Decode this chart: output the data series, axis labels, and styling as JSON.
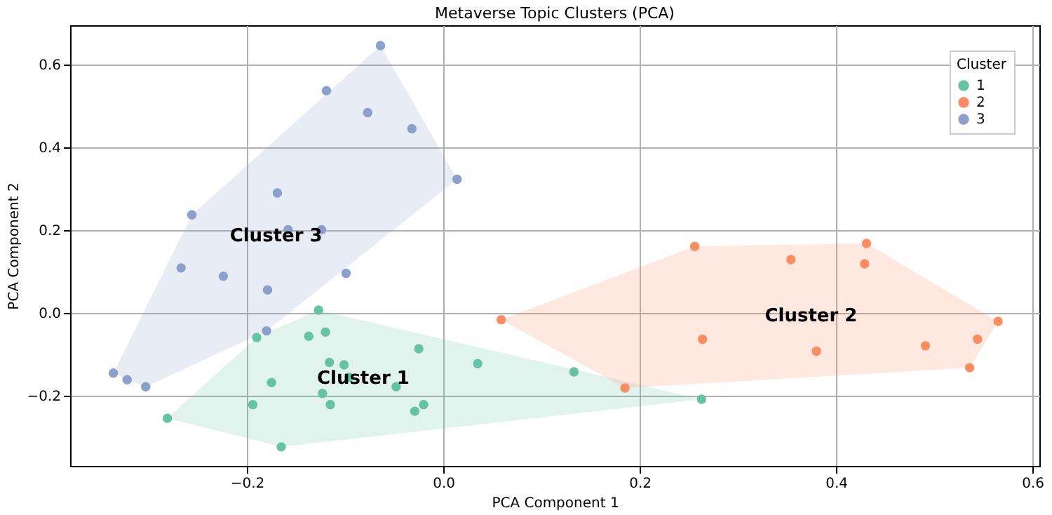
{
  "chart_data": {
    "type": "scatter",
    "title": "Metaverse Topic Clusters (PCA)",
    "xlabel": "PCA Component 1",
    "ylabel": "PCA Component 2",
    "legend_title": "Cluster",
    "legend": "top right",
    "grid": true,
    "xlim": [
      -0.38,
      0.607
    ],
    "ylim": [
      -0.369,
      0.695
    ],
    "xticks": [
      {
        "value": -0.2,
        "label": "−0.2"
      },
      {
        "value": 0,
        "label": "0.0"
      },
      {
        "value": 0.2,
        "label": "0.2"
      },
      {
        "value": 0.4,
        "label": "0.4"
      },
      {
        "value": 0.6,
        "label": "0.6"
      }
    ],
    "yticks": [
      {
        "value": -0.2,
        "label": "−0.2"
      },
      {
        "value": 0,
        "label": "0.0"
      },
      {
        "value": 0.2,
        "label": "0.2"
      },
      {
        "value": 0.4,
        "label": "0.4"
      },
      {
        "value": 0.6,
        "label": "0.6"
      }
    ],
    "series": [
      {
        "type": "area",
        "marker": "none",
        "color": "#66c2a5",
        "x": [
          -0.127,
          0.263,
          -0.165,
          -0.281,
          -0.19,
          -0.127
        ],
        "values": [
          0.007,
          -0.208,
          -0.323,
          -0.254,
          -0.059,
          0.007
        ]
      },
      {
        "type": "area",
        "marker": "none",
        "color": "#fc8d62",
        "x": [
          0.059,
          0.256,
          0.431,
          0.565,
          0.536,
          0.185,
          0.059
        ],
        "values": [
          -0.016,
          0.161,
          0.168,
          -0.02,
          -0.132,
          -0.181,
          -0.016
        ]
      },
      {
        "type": "area",
        "marker": "none",
        "color": "#8da0cb",
        "x": [
          -0.064,
          0.014,
          -0.18,
          -0.303,
          -0.322,
          -0.336,
          -0.256,
          -0.064
        ],
        "values": [
          0.646,
          0.323,
          -0.043,
          -0.178,
          -0.161,
          -0.145,
          0.237,
          0.646
        ]
      },
      {
        "name": "1",
        "marker": "circle",
        "color": "#66c2a5",
        "x": [
          -0.127,
          -0.19,
          -0.137,
          -0.12,
          -0.025,
          0.035,
          -0.116,
          -0.101,
          -0.096,
          -0.048,
          -0.175,
          -0.123,
          -0.115,
          -0.194,
          -0.029,
          -0.02,
          -0.281,
          -0.165,
          0.133,
          0.263
        ],
        "values": [
          0.007,
          -0.059,
          -0.056,
          -0.046,
          -0.086,
          -0.122,
          -0.119,
          -0.125,
          -0.155,
          -0.178,
          -0.168,
          -0.194,
          -0.221,
          -0.221,
          -0.237,
          -0.221,
          -0.254,
          -0.323,
          -0.142,
          -0.208
        ]
      },
      {
        "name": "2",
        "marker": "circle",
        "color": "#fc8d62",
        "x": [
          0.059,
          0.256,
          0.354,
          0.431,
          0.429,
          0.264,
          0.38,
          0.185,
          0.491,
          0.544,
          0.565,
          0.536
        ],
        "values": [
          -0.016,
          0.161,
          0.129,
          0.168,
          0.119,
          -0.063,
          -0.092,
          -0.181,
          -0.079,
          -0.063,
          -0.02,
          -0.132
        ]
      },
      {
        "name": "3",
        "marker": "circle",
        "color": "#8da0cb",
        "x": [
          -0.064,
          -0.119,
          -0.077,
          -0.032,
          0.014,
          -0.169,
          -0.256,
          -0.158,
          -0.124,
          -0.267,
          -0.224,
          -0.179,
          -0.099,
          -0.18,
          -0.336,
          -0.322,
          -0.303
        ],
        "values": [
          0.646,
          0.537,
          0.484,
          0.445,
          0.323,
          0.29,
          0.237,
          0.201,
          0.201,
          0.109,
          0.089,
          0.056,
          0.096,
          -0.043,
          -0.145,
          -0.161,
          -0.178
        ]
      }
    ],
    "annotations": [
      "Cluster 1",
      "Cluster 2",
      "Cluster 3"
    ]
  }
}
